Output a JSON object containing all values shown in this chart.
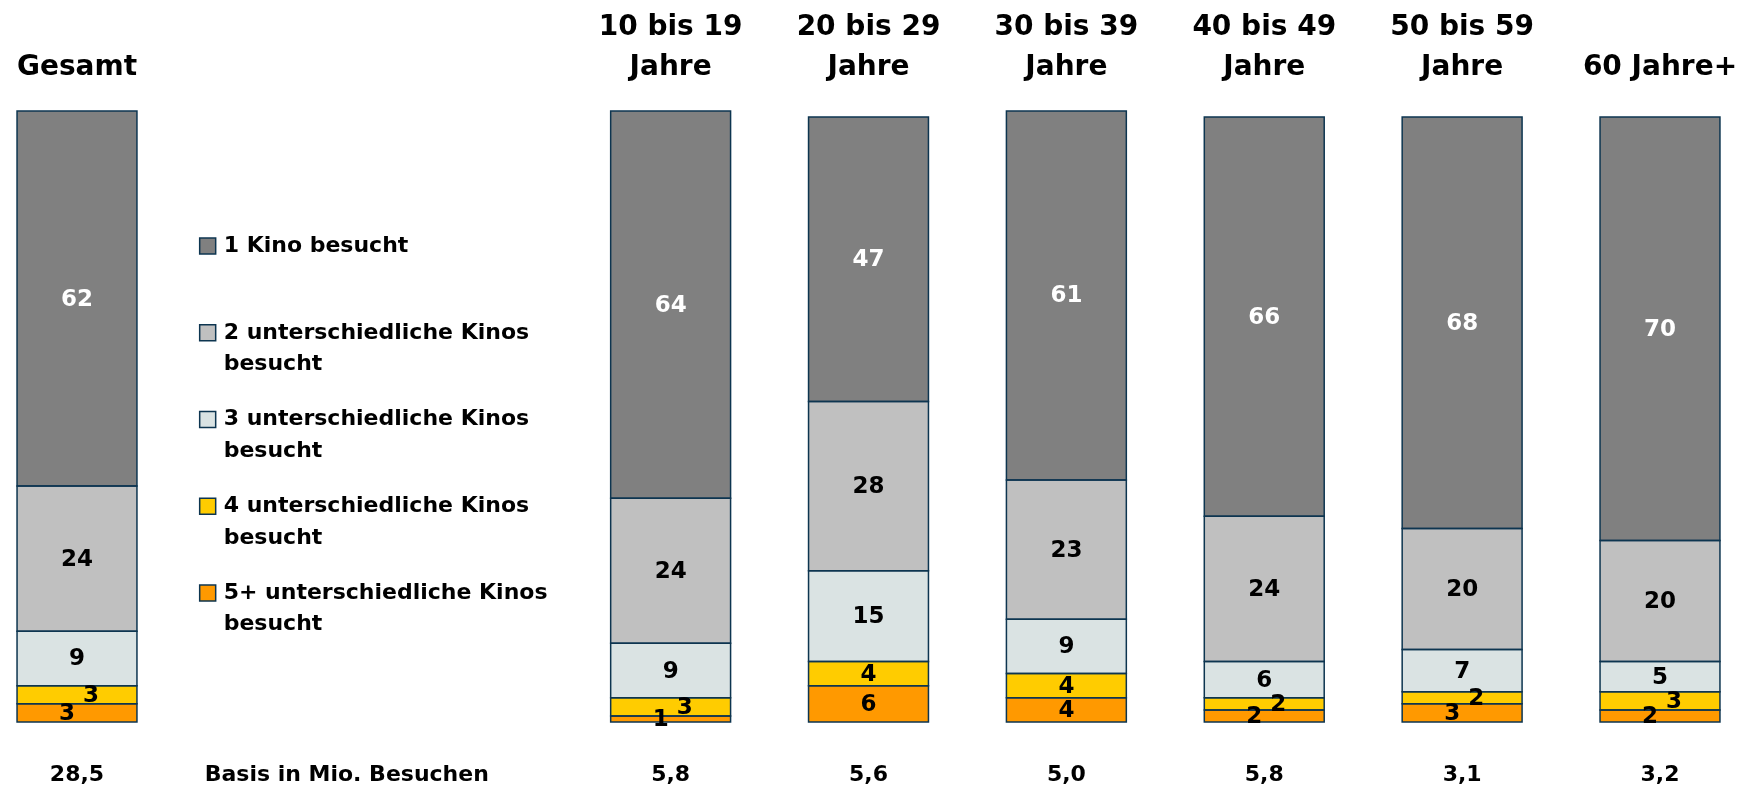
{
  "chart_data": {
    "type": "bar",
    "stacked": true,
    "data_labels": true,
    "legend": "left",
    "tick_labels": "x",
    "categories": [
      "Gesamt",
      null,
      null,
      "10 bis 19 Jahre",
      "20 bis 29 Jahre",
      "30 bis 39 Jahre",
      "40 bis 49 Jahre",
      "50 bis 59 Jahre",
      "60 Jahre+"
    ],
    "series": [
      {
        "name": "5+ unterschiedliche Kinos besucht",
        "color": "#ff9900",
        "values": [
          3,
          null,
          null,
          1,
          6,
          4,
          2,
          3,
          2
        ]
      },
      {
        "name": "4 unterschiedliche Kinos besucht",
        "color": "#ffcc00",
        "values": [
          3,
          null,
          null,
          3,
          4,
          4,
          2,
          2,
          3
        ]
      },
      {
        "name": "3 unterschiedliche Kinos besucht",
        "color": "#dae3e3",
        "values": [
          9,
          null,
          null,
          9,
          15,
          9,
          6,
          7,
          5
        ]
      },
      {
        "name": "2 unterschiedliche Kinos besucht",
        "color": "#c0c0c0",
        "values": [
          24,
          null,
          null,
          24,
          28,
          23,
          24,
          20,
          20
        ]
      },
      {
        "name": "1 Kino besucht",
        "color": "#808080",
        "values": [
          62,
          null,
          null,
          64,
          47,
          61,
          66,
          68,
          70
        ]
      }
    ],
    "annotations": [
      "28,5",
      "Basis in Mio. Besuchen",
      "5,8",
      "5,6",
      "5,0",
      "5,8",
      "3,1",
      "3,2"
    ]
  }
}
